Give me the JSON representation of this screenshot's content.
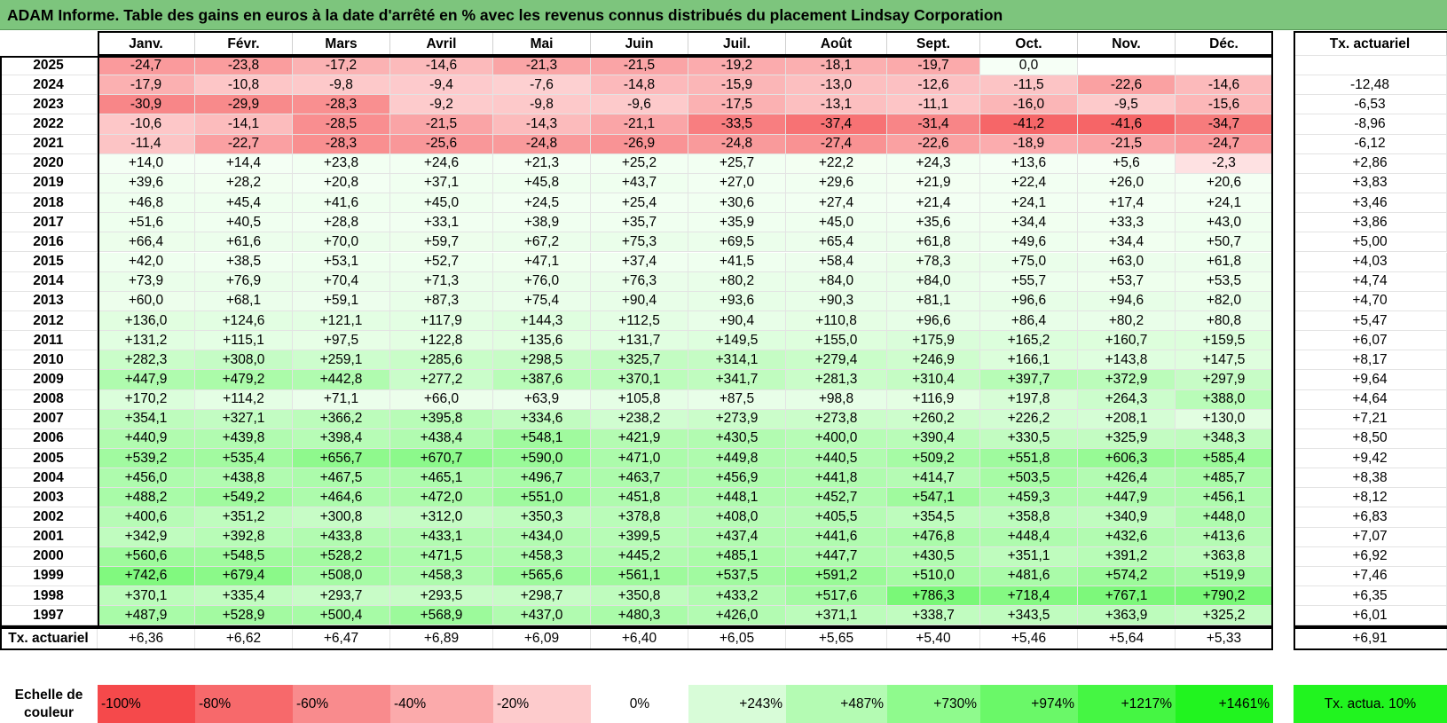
{
  "title": "ADAM Informe. Table des gains en euros à la date d'arrêté en % avec les revenus connus distribués du placement Lindsay Corporation",
  "months": [
    "Janv.",
    "Févr.",
    "Mars",
    "Avril",
    "Mai",
    "Juin",
    "Juil.",
    "Août",
    "Sept.",
    "Oct.",
    "Nov.",
    "Déc."
  ],
  "rate_header": "Tx. actuariel",
  "rows": [
    {
      "year": "2025",
      "values": [
        "-24,7",
        "-23,8",
        "-17,2",
        "-14,6",
        "-21,3",
        "-21,5",
        "-19,2",
        "-18,1",
        "-19,7",
        "0,0",
        "",
        ""
      ],
      "rate": ""
    },
    {
      "year": "2024",
      "values": [
        "-17,9",
        "-10,8",
        "-9,8",
        "-9,4",
        "-7,6",
        "-14,8",
        "-15,9",
        "-13,0",
        "-12,6",
        "-11,5",
        "-22,6",
        "-14,6"
      ],
      "rate": "-12,48"
    },
    {
      "year": "2023",
      "values": [
        "-30,9",
        "-29,9",
        "-28,3",
        "-9,2",
        "-9,8",
        "-9,6",
        "-17,5",
        "-13,1",
        "-11,1",
        "-16,0",
        "-9,5",
        "-15,6"
      ],
      "rate": "-6,53"
    },
    {
      "year": "2022",
      "values": [
        "-10,6",
        "-14,1",
        "-28,5",
        "-21,5",
        "-14,3",
        "-21,1",
        "-33,5",
        "-37,4",
        "-31,4",
        "-41,2",
        "-41,6",
        "-34,7"
      ],
      "rate": "-8,96"
    },
    {
      "year": "2021",
      "values": [
        "-11,4",
        "-22,7",
        "-28,3",
        "-25,6",
        "-24,8",
        "-26,9",
        "-24,8",
        "-27,4",
        "-22,6",
        "-18,9",
        "-21,5",
        "-24,7"
      ],
      "rate": "-6,12"
    },
    {
      "year": "2020",
      "values": [
        "+14,0",
        "+14,4",
        "+23,8",
        "+24,6",
        "+21,3",
        "+25,2",
        "+25,7",
        "+22,2",
        "+24,3",
        "+13,6",
        "+5,6",
        "-2,3"
      ],
      "rate": "+2,86"
    },
    {
      "year": "2019",
      "values": [
        "+39,6",
        "+28,2",
        "+20,8",
        "+37,1",
        "+45,8",
        "+43,7",
        "+27,0",
        "+29,6",
        "+21,9",
        "+22,4",
        "+26,0",
        "+20,6"
      ],
      "rate": "+3,83"
    },
    {
      "year": "2018",
      "values": [
        "+46,8",
        "+45,4",
        "+41,6",
        "+45,0",
        "+24,5",
        "+25,4",
        "+30,6",
        "+27,4",
        "+21,4",
        "+24,1",
        "+17,4",
        "+24,1"
      ],
      "rate": "+3,46"
    },
    {
      "year": "2017",
      "values": [
        "+51,6",
        "+40,5",
        "+28,8",
        "+33,1",
        "+38,9",
        "+35,7",
        "+35,9",
        "+45,0",
        "+35,6",
        "+34,4",
        "+33,3",
        "+43,0"
      ],
      "rate": "+3,86"
    },
    {
      "year": "2016",
      "values": [
        "+66,4",
        "+61,6",
        "+70,0",
        "+59,7",
        "+67,2",
        "+75,3",
        "+69,5",
        "+65,4",
        "+61,8",
        "+49,6",
        "+34,4",
        "+50,7"
      ],
      "rate": "+5,00"
    },
    {
      "year": "2015",
      "values": [
        "+42,0",
        "+38,5",
        "+53,1",
        "+52,7",
        "+47,1",
        "+37,4",
        "+41,5",
        "+58,4",
        "+78,3",
        "+75,0",
        "+63,0",
        "+61,8"
      ],
      "rate": "+4,03"
    },
    {
      "year": "2014",
      "values": [
        "+73,9",
        "+76,9",
        "+70,4",
        "+71,3",
        "+76,0",
        "+76,3",
        "+80,2",
        "+84,0",
        "+84,0",
        "+55,7",
        "+53,7",
        "+53,5"
      ],
      "rate": "+4,74"
    },
    {
      "year": "2013",
      "values": [
        "+60,0",
        "+68,1",
        "+59,1",
        "+87,3",
        "+75,4",
        "+90,4",
        "+93,6",
        "+90,3",
        "+81,1",
        "+96,6",
        "+94,6",
        "+82,0"
      ],
      "rate": "+4,70"
    },
    {
      "year": "2012",
      "values": [
        "+136,0",
        "+124,6",
        "+121,1",
        "+117,9",
        "+144,3",
        "+112,5",
        "+90,4",
        "+110,8",
        "+96,6",
        "+86,4",
        "+80,2",
        "+80,8"
      ],
      "rate": "+5,47"
    },
    {
      "year": "2011",
      "values": [
        "+131,2",
        "+115,1",
        "+97,5",
        "+122,8",
        "+135,6",
        "+131,7",
        "+149,5",
        "+155,0",
        "+175,9",
        "+165,2",
        "+160,7",
        "+159,5"
      ],
      "rate": "+6,07"
    },
    {
      "year": "2010",
      "values": [
        "+282,3",
        "+308,0",
        "+259,1",
        "+285,6",
        "+298,5",
        "+325,7",
        "+314,1",
        "+279,4",
        "+246,9",
        "+166,1",
        "+143,8",
        "+147,5"
      ],
      "rate": "+8,17"
    },
    {
      "year": "2009",
      "values": [
        "+447,9",
        "+479,2",
        "+442,8",
        "+277,2",
        "+387,6",
        "+370,1",
        "+341,7",
        "+281,3",
        "+310,4",
        "+397,7",
        "+372,9",
        "+297,9"
      ],
      "rate": "+9,64"
    },
    {
      "year": "2008",
      "values": [
        "+170,2",
        "+114,2",
        "+71,1",
        "+66,0",
        "+63,9",
        "+105,8",
        "+87,5",
        "+98,8",
        "+116,9",
        "+197,8",
        "+264,3",
        "+388,0"
      ],
      "rate": "+4,64"
    },
    {
      "year": "2007",
      "values": [
        "+354,1",
        "+327,1",
        "+366,2",
        "+395,8",
        "+334,6",
        "+238,2",
        "+273,9",
        "+273,8",
        "+260,2",
        "+226,2",
        "+208,1",
        "+130,0"
      ],
      "rate": "+7,21"
    },
    {
      "year": "2006",
      "values": [
        "+440,9",
        "+439,8",
        "+398,4",
        "+438,4",
        "+548,1",
        "+421,9",
        "+430,5",
        "+400,0",
        "+390,4",
        "+330,5",
        "+325,9",
        "+348,3"
      ],
      "rate": "+8,50"
    },
    {
      "year": "2005",
      "values": [
        "+539,2",
        "+535,4",
        "+656,7",
        "+670,7",
        "+590,0",
        "+471,0",
        "+449,8",
        "+440,5",
        "+509,2",
        "+551,8",
        "+606,3",
        "+585,4"
      ],
      "rate": "+9,42"
    },
    {
      "year": "2004",
      "values": [
        "+456,0",
        "+438,8",
        "+467,5",
        "+465,1",
        "+496,7",
        "+463,7",
        "+456,9",
        "+441,8",
        "+414,7",
        "+503,5",
        "+426,4",
        "+485,7"
      ],
      "rate": "+8,38"
    },
    {
      "year": "2003",
      "values": [
        "+488,2",
        "+549,2",
        "+464,6",
        "+472,0",
        "+551,0",
        "+451,8",
        "+448,1",
        "+452,7",
        "+547,1",
        "+459,3",
        "+447,9",
        "+456,1"
      ],
      "rate": "+8,12"
    },
    {
      "year": "2002",
      "values": [
        "+400,6",
        "+351,2",
        "+300,8",
        "+312,0",
        "+350,3",
        "+378,8",
        "+408,0",
        "+405,5",
        "+354,5",
        "+358,8",
        "+340,9",
        "+448,0"
      ],
      "rate": "+6,83"
    },
    {
      "year": "2001",
      "values": [
        "+342,9",
        "+392,8",
        "+433,8",
        "+433,1",
        "+434,0",
        "+399,5",
        "+437,4",
        "+441,6",
        "+476,8",
        "+448,4",
        "+432,6",
        "+413,6"
      ],
      "rate": "+7,07"
    },
    {
      "year": "2000",
      "values": [
        "+560,6",
        "+548,5",
        "+528,2",
        "+471,5",
        "+458,3",
        "+445,2",
        "+485,1",
        "+447,7",
        "+430,5",
        "+351,1",
        "+391,2",
        "+363,8"
      ],
      "rate": "+6,92"
    },
    {
      "year": "1999",
      "values": [
        "+742,6",
        "+679,4",
        "+508,0",
        "+458,3",
        "+565,6",
        "+561,1",
        "+537,5",
        "+591,2",
        "+510,0",
        "+481,6",
        "+574,2",
        "+519,9"
      ],
      "rate": "+7,46"
    },
    {
      "year": "1998",
      "values": [
        "+370,1",
        "+335,4",
        "+293,7",
        "+293,5",
        "+298,7",
        "+350,8",
        "+433,2",
        "+517,6",
        "+786,3",
        "+718,4",
        "+767,1",
        "+790,2"
      ],
      "rate": "+6,35"
    },
    {
      "year": "1997",
      "values": [
        "+487,9",
        "+528,9",
        "+500,4",
        "+568,9",
        "+437,0",
        "+480,3",
        "+426,0",
        "+371,1",
        "+338,7",
        "+343,5",
        "+363,9",
        "+325,2"
      ],
      "rate": "+6,01"
    }
  ],
  "footer": {
    "label": "Tx. actuariel",
    "values": [
      "+6,36",
      "+6,62",
      "+6,47",
      "+6,89",
      "+6,09",
      "+6,40",
      "+6,05",
      "+5,65",
      "+5,40",
      "+5,46",
      "+5,64",
      "+5,33"
    ],
    "rate": "+6,91"
  },
  "scale": {
    "label": "Echelle de couleur",
    "items": [
      {
        "text": "-100%",
        "color": "#f5494b"
      },
      {
        "text": "-80%",
        "color": "#f7696b"
      },
      {
        "text": "-60%",
        "color": "#f98b8d"
      },
      {
        "text": "-40%",
        "color": "#fbaaab"
      },
      {
        "text": "-20%",
        "color": "#fdcbcc"
      },
      {
        "text": "0%",
        "color": "#ffffff"
      },
      {
        "text": "+243%",
        "color": "#d8fcd8"
      },
      {
        "text": "+487%",
        "color": "#b4fbb3"
      },
      {
        "text": "+730%",
        "color": "#8ffa8d"
      },
      {
        "text": "+974%",
        "color": "#6af868"
      },
      {
        "text": "+1217%",
        "color": "#45f643"
      },
      {
        "text": "+1461%",
        "color": "#21f41f"
      }
    ],
    "ref_label": "Tx. actua. 10%",
    "ref_color": "#21f41f"
  },
  "colors": {
    "title_bar": "#7dc57d",
    "positive_max": "#21f41f",
    "negative_max": "#f5494b"
  }
}
